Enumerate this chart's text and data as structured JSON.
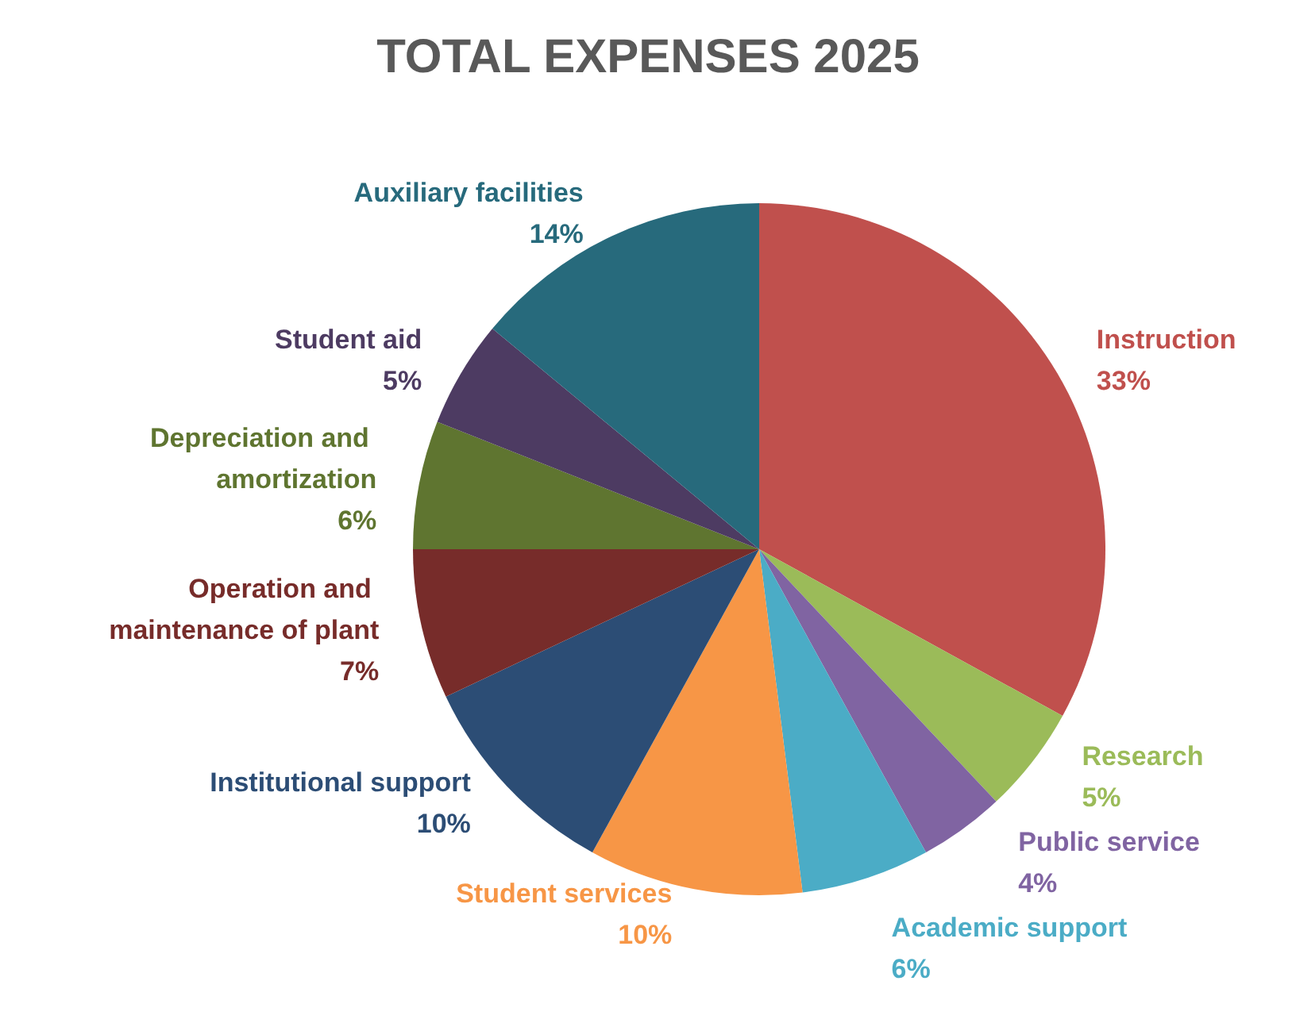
{
  "chart_data": {
    "type": "pie",
    "title": "TOTAL EXPENSES 2025",
    "categories": [
      "Instruction",
      "Research",
      "Public service",
      "Academic support",
      "Student services",
      "Institutional support",
      "Operation and maintenance of plant",
      "Depreciation and amortization",
      "Student aid",
      "Auxiliary facilities"
    ],
    "values": [
      33,
      5,
      4,
      6,
      10,
      10,
      7,
      6,
      5,
      14
    ],
    "value_labels": [
      "33%",
      "5%",
      "4%",
      "6%",
      "10%",
      "10%",
      "7%",
      "6%",
      "5%",
      "14%"
    ],
    "colors": [
      "#c0504d",
      "#9bbb59",
      "#8064a2",
      "#4bacc6",
      "#f79646",
      "#2c4d75",
      "#772c2a",
      "#5f7530",
      "#4d3b62",
      "#276a7c"
    ],
    "legend": false
  }
}
